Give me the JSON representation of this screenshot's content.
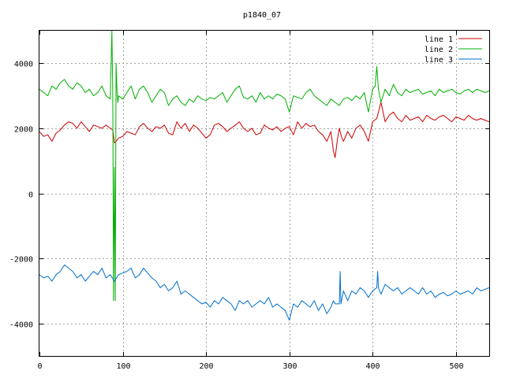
{
  "colors": {
    "background": "#ffffff",
    "grid": "#a0a0a0",
    "frame": "#000000"
  },
  "chart_data": {
    "type": "line",
    "title": "p1840_07",
    "xlabel": "",
    "ylabel": "",
    "xlim": [
      0,
      540
    ],
    "ylim": [
      -5000,
      5000
    ],
    "xticks": [
      0,
      100,
      200,
      300,
      400,
      500
    ],
    "yticks": [
      -4000,
      -2000,
      0,
      2000,
      4000
    ],
    "grid": true,
    "legend_position": "top-right",
    "series": [
      {
        "name": "line 1",
        "color": "#cc0000",
        "x": [
          0,
          5,
          10,
          15,
          20,
          25,
          30,
          35,
          40,
          45,
          50,
          55,
          60,
          65,
          70,
          75,
          80,
          85,
          88,
          90,
          92,
          95,
          100,
          105,
          110,
          115,
          120,
          125,
          130,
          135,
          140,
          145,
          150,
          155,
          160,
          165,
          170,
          175,
          180,
          185,
          190,
          195,
          200,
          205,
          210,
          215,
          220,
          225,
          230,
          235,
          240,
          245,
          250,
          255,
          260,
          265,
          270,
          275,
          280,
          285,
          290,
          295,
          300,
          305,
          310,
          315,
          320,
          325,
          330,
          335,
          340,
          345,
          350,
          353,
          355,
          358,
          360,
          363,
          365,
          370,
          375,
          380,
          385,
          390,
          395,
          400,
          405,
          410,
          415,
          420,
          425,
          430,
          435,
          440,
          445,
          450,
          455,
          460,
          465,
          470,
          475,
          480,
          485,
          490,
          495,
          500,
          505,
          510,
          515,
          520,
          525,
          530,
          535,
          540
        ],
        "y": [
          1900,
          1750,
          1800,
          1600,
          1850,
          1950,
          2100,
          2200,
          2150,
          2000,
          2200,
          2050,
          1900,
          2100,
          2050,
          2000,
          2100,
          2000,
          1950,
          1550,
          1600,
          1700,
          1750,
          1900,
          1850,
          1800,
          2050,
          2150,
          2000,
          1900,
          2050,
          2000,
          2100,
          1850,
          1800,
          2200,
          2000,
          2150,
          1900,
          2100,
          2000,
          1850,
          1700,
          1800,
          2100,
          2150,
          2050,
          1900,
          2000,
          2100,
          2200,
          2000,
          1900,
          2000,
          1800,
          1850,
          2100,
          2000,
          1950,
          2050,
          1900,
          2000,
          2050,
          1800,
          2200,
          2000,
          2150,
          2050,
          2100,
          1900,
          1800,
          1600,
          1900,
          1300,
          1100,
          1700,
          2000,
          1700,
          1600,
          1900,
          1700,
          2000,
          2100,
          1900,
          1600,
          2200,
          2300,
          2800,
          2200,
          2400,
          2500,
          2300,
          2200,
          2400,
          2250,
          2300,
          2350,
          2200,
          2400,
          2300,
          2250,
          2350,
          2400,
          2300,
          2200,
          2350,
          2300,
          2250,
          2400,
          2300,
          2250,
          2300,
          2250,
          2200
        ]
      },
      {
        "name": "line 2",
        "color": "#00b000",
        "x": [
          0,
          5,
          10,
          15,
          20,
          25,
          30,
          35,
          40,
          45,
          50,
          55,
          60,
          65,
          70,
          75,
          80,
          85,
          87,
          88,
          89,
          90,
          91,
          92,
          93,
          94,
          95,
          100,
          105,
          110,
          115,
          120,
          125,
          130,
          135,
          140,
          145,
          150,
          155,
          160,
          165,
          170,
          175,
          180,
          185,
          190,
          195,
          200,
          205,
          210,
          215,
          220,
          225,
          230,
          235,
          240,
          245,
          250,
          255,
          260,
          265,
          270,
          275,
          280,
          285,
          290,
          295,
          300,
          305,
          310,
          315,
          320,
          325,
          330,
          335,
          340,
          345,
          350,
          355,
          360,
          365,
          370,
          375,
          380,
          385,
          390,
          395,
          400,
          403,
          405,
          407,
          410,
          415,
          420,
          425,
          430,
          435,
          440,
          445,
          450,
          455,
          460,
          465,
          470,
          475,
          480,
          485,
          490,
          495,
          500,
          505,
          510,
          515,
          520,
          525,
          530,
          535,
          540
        ],
        "y": [
          3200,
          3100,
          3000,
          3300,
          3200,
          3400,
          3500,
          3300,
          3200,
          3400,
          3300,
          3100,
          3200,
          3000,
          3100,
          3300,
          3000,
          2900,
          5000,
          3100,
          -3300,
          800,
          -3300,
          4000,
          3200,
          2800,
          3000,
          2900,
          3100,
          3300,
          2900,
          3200,
          3300,
          3100,
          2800,
          3000,
          3200,
          3100,
          2700,
          2900,
          3000,
          2800,
          2700,
          2900,
          2800,
          3000,
          2900,
          2850,
          2950,
          2900,
          3000,
          3100,
          2800,
          3000,
          3200,
          3300,
          2950,
          2900,
          3000,
          2800,
          3100,
          2900,
          3000,
          2900,
          3050,
          3000,
          2900,
          2500,
          3000,
          2950,
          2900,
          3100,
          3200,
          3000,
          2900,
          2800,
          2700,
          2900,
          2800,
          2700,
          2900,
          2950,
          2850,
          3000,
          2900,
          3100,
          2500,
          3200,
          3300,
          3900,
          3200,
          2800,
          3200,
          3000,
          3350,
          3100,
          3000,
          3200,
          3100,
          3150,
          3200,
          3050,
          3100,
          3150,
          3000,
          3200,
          3100,
          3150,
          3200,
          3100,
          3050,
          3150,
          3200,
          3100,
          3200,
          3150,
          3100,
          3150
        ]
      },
      {
        "name": "line 3",
        "color": "#0070cc",
        "x": [
          0,
          5,
          10,
          15,
          20,
          25,
          30,
          35,
          40,
          45,
          50,
          55,
          60,
          65,
          70,
          75,
          80,
          85,
          90,
          95,
          100,
          105,
          110,
          115,
          120,
          125,
          130,
          135,
          140,
          145,
          150,
          155,
          160,
          165,
          170,
          175,
          180,
          185,
          190,
          195,
          200,
          205,
          210,
          215,
          220,
          225,
          230,
          235,
          240,
          245,
          250,
          255,
          260,
          265,
          270,
          275,
          280,
          285,
          290,
          295,
          300,
          305,
          310,
          315,
          320,
          325,
          330,
          335,
          340,
          345,
          350,
          353,
          355,
          358,
          360,
          361,
          362,
          365,
          370,
          375,
          380,
          385,
          390,
          395,
          400,
          405,
          406,
          407,
          410,
          415,
          420,
          425,
          430,
          435,
          440,
          445,
          450,
          455,
          460,
          465,
          470,
          475,
          480,
          485,
          490,
          495,
          500,
          505,
          510,
          515,
          520,
          525,
          530,
          535,
          540
        ],
        "y": [
          -2500,
          -2600,
          -2550,
          -2700,
          -2500,
          -2400,
          -2200,
          -2300,
          -2400,
          -2600,
          -2500,
          -2700,
          -2550,
          -2400,
          -2500,
          -2300,
          -2600,
          -2500,
          -2700,
          -2500,
          -2450,
          -2400,
          -2300,
          -2600,
          -2500,
          -2300,
          -2450,
          -2600,
          -2700,
          -2900,
          -2800,
          -3000,
          -2900,
          -2700,
          -3100,
          -3000,
          -3100,
          -3200,
          -3300,
          -3400,
          -3350,
          -3500,
          -3300,
          -3400,
          -3200,
          -3300,
          -3400,
          -3600,
          -3300,
          -3400,
          -3300,
          -3500,
          -3400,
          -3300,
          -3400,
          -3200,
          -3500,
          -3400,
          -3500,
          -3600,
          -3900,
          -3400,
          -3500,
          -3300,
          -3400,
          -3500,
          -3300,
          -3600,
          -3400,
          -3700,
          -3500,
          -3300,
          -3400,
          -3400,
          -3400,
          -2400,
          -3400,
          -3000,
          -3300,
          -3000,
          -3100,
          -2900,
          -3000,
          -3200,
          -3000,
          -2900,
          -2400,
          -2900,
          -3100,
          -2800,
          -2900,
          -3000,
          -2900,
          -3100,
          -3000,
          -2900,
          -3000,
          -3100,
          -2900,
          -3100,
          -3000,
          -3200,
          -3100,
          -3050,
          -3150,
          -3100,
          -3000,
          -3100,
          -3050,
          -3000,
          -3100,
          -2900,
          -3000,
          -2950,
          -2900
        ]
      }
    ]
  }
}
